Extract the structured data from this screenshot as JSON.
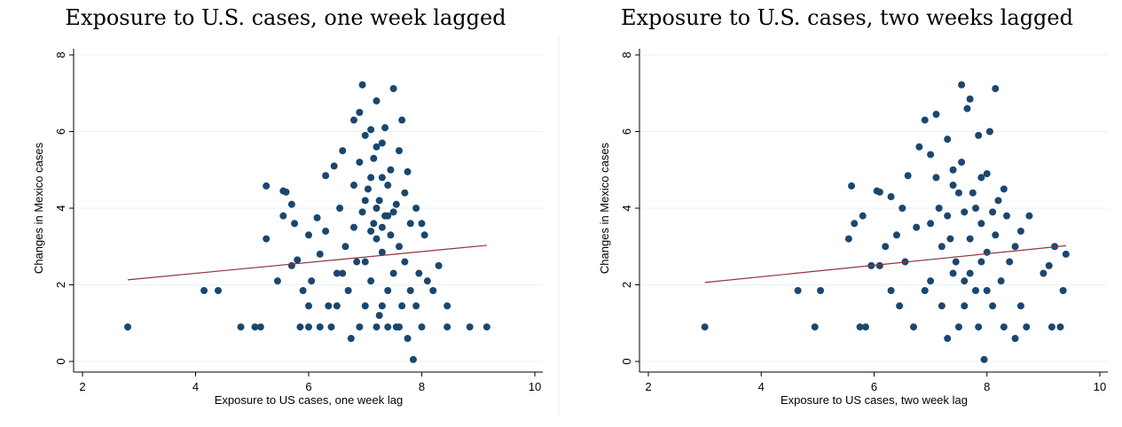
{
  "chart_data": [
    {
      "type": "scatter",
      "title": "Exposure to U.S. cases, one week lagged",
      "xlabel": "Exposure to US cases, one week lag",
      "ylabel": "Changes in Mexico cases",
      "xlim": [
        2,
        10
      ],
      "ylim": [
        0,
        8
      ],
      "xticks": [
        2,
        4,
        6,
        8,
        10
      ],
      "yticks": [
        0,
        2,
        4,
        6,
        8
      ],
      "grid": true,
      "color": "#1a476f",
      "x": [
        2.8,
        4.15,
        4.4,
        4.8,
        5.05,
        5.15,
        5.25,
        5.25,
        5.45,
        5.55,
        5.6,
        5.55,
        5.7,
        5.75,
        5.7,
        5.8,
        5.9,
        5.85,
        6.0,
        6.05,
        6.0,
        6.15,
        6.2,
        6.3,
        6.3,
        6.35,
        6.4,
        6.45,
        6.5,
        6.55,
        6.6,
        6.65,
        6.7,
        6.75,
        6.8,
        6.8,
        6.85,
        6.9,
        6.95,
        6.95,
        7.0,
        7.0,
        7.05,
        7.1,
        7.1,
        7.15,
        7.15,
        7.2,
        7.2,
        7.25,
        7.25,
        7.3,
        7.3,
        7.35,
        7.35,
        7.4,
        7.4,
        7.45,
        7.45,
        7.5,
        7.5,
        7.55,
        7.55,
        7.6,
        7.6,
        7.65,
        7.65,
        7.7,
        7.7,
        7.75,
        7.75,
        7.8,
        7.8,
        7.85,
        7.9,
        7.95,
        8.0,
        8.05,
        8.1,
        8.2,
        8.3,
        8.45,
        8.45,
        8.85,
        9.15,
        6.9,
        7.0,
        7.1,
        7.2,
        7.3,
        7.4,
        7.2,
        7.3,
        7.4,
        7.0,
        6.8,
        6.6,
        6.5,
        7.6,
        8.0,
        7.9,
        6.2,
        6.0,
        7.1,
        7.3,
        7.5,
        6.9,
        7.2
      ],
      "y": [
        0.9,
        1.85,
        1.85,
        0.9,
        0.9,
        0.9,
        4.58,
        3.2,
        2.1,
        4.45,
        4.42,
        3.8,
        4.1,
        3.6,
        2.5,
        2.65,
        1.85,
        0.9,
        1.45,
        2.1,
        3.3,
        3.75,
        2.8,
        4.85,
        3.4,
        1.45,
        0.9,
        5.1,
        2.3,
        4.0,
        5.5,
        3.0,
        1.85,
        0.6,
        6.3,
        4.6,
        2.6,
        6.5,
        7.22,
        3.9,
        5.9,
        1.45,
        4.5,
        6.05,
        2.1,
        5.3,
        3.6,
        6.8,
        0.9,
        4.2,
        1.2,
        5.7,
        2.85,
        3.8,
        6.1,
        4.6,
        1.85,
        3.3,
        5.0,
        7.12,
        2.3,
        4.1,
        0.9,
        5.5,
        3.0,
        6.3,
        1.45,
        4.4,
        2.6,
        4.95,
        0.6,
        3.6,
        1.85,
        0.05,
        4.0,
        2.3,
        3.6,
        3.3,
        2.1,
        1.85,
        2.5,
        1.45,
        0.9,
        0.9,
        0.9,
        0.9,
        2.6,
        3.4,
        4.0,
        1.45,
        0.9,
        3.2,
        4.8,
        3.8,
        4.2,
        3.5,
        2.3,
        1.45,
        0.9,
        0.9,
        1.45,
        0.9,
        0.9,
        4.8,
        3.5,
        3.9,
        5.2,
        5.6
      ],
      "fit_line": {
        "x": [
          2.8,
          9.15
        ],
        "y": [
          2.13,
          3.03
        ],
        "color": "#90353b"
      }
    },
    {
      "type": "scatter",
      "title": "Exposure to U.S. cases, two weeks lagged",
      "xlabel": "Exposure to US cases, two week lag",
      "ylabel": "Changes in Mexico cases",
      "xlim": [
        2,
        10
      ],
      "ylim": [
        0,
        8
      ],
      "xticks": [
        2,
        4,
        6,
        8,
        10
      ],
      "yticks": [
        0,
        2,
        4,
        6,
        8
      ],
      "grid": true,
      "color": "#1a476f",
      "x": [
        3.0,
        4.65,
        5.05,
        4.95,
        5.55,
        5.6,
        5.65,
        5.75,
        5.85,
        5.8,
        6.05,
        6.1,
        5.95,
        6.1,
        6.3,
        6.2,
        6.3,
        6.4,
        6.45,
        6.5,
        6.55,
        6.6,
        6.7,
        6.8,
        6.75,
        6.9,
        7.0,
        7.0,
        7.1,
        7.15,
        7.2,
        7.3,
        7.3,
        7.35,
        7.4,
        7.45,
        7.5,
        7.55,
        7.55,
        7.6,
        7.65,
        7.7,
        7.7,
        7.75,
        7.8,
        7.85,
        7.85,
        7.9,
        7.95,
        8.0,
        8.0,
        8.05,
        8.1,
        8.15,
        8.15,
        8.2,
        8.25,
        8.3,
        8.35,
        8.4,
        8.5,
        8.5,
        8.6,
        8.6,
        8.75,
        8.7,
        9.0,
        9.1,
        9.15,
        9.2,
        9.3,
        9.35,
        9.4,
        7.3,
        7.4,
        7.6,
        7.7,
        7.8,
        7.9,
        8.0,
        7.5,
        7.2,
        7.0,
        6.9,
        7.6,
        7.9,
        8.1,
        7.4,
        7.1,
        8.3
      ],
      "y": [
        0.9,
        1.85,
        1.85,
        0.9,
        3.2,
        4.58,
        3.6,
        0.9,
        0.9,
        3.8,
        4.45,
        4.42,
        2.5,
        2.5,
        4.3,
        3.0,
        1.85,
        3.3,
        1.45,
        4.0,
        2.6,
        4.85,
        0.9,
        5.6,
        3.5,
        6.3,
        5.4,
        2.1,
        6.45,
        4.0,
        1.45,
        5.8,
        0.6,
        3.2,
        4.6,
        2.6,
        0.9,
        7.22,
        5.2,
        3.9,
        6.6,
        6.85,
        2.3,
        4.4,
        1.85,
        5.9,
        0.9,
        3.6,
        0.05,
        4.9,
        2.85,
        6.0,
        1.45,
        7.12,
        3.3,
        4.2,
        2.1,
        0.9,
        3.8,
        2.6,
        0.6,
        3.0,
        1.45,
        3.4,
        3.8,
        0.9,
        2.3,
        2.5,
        0.9,
        3.0,
        0.9,
        1.85,
        2.8,
        3.8,
        2.3,
        2.1,
        3.2,
        4.0,
        4.8,
        1.85,
        4.4,
        3.0,
        3.6,
        1.85,
        1.45,
        2.6,
        3.9,
        5.0,
        4.8,
        4.5
      ],
      "fit_line": {
        "x": [
          3.0,
          9.4
        ],
        "y": [
          2.06,
          3.02
        ],
        "color": "#90353b"
      }
    }
  ]
}
